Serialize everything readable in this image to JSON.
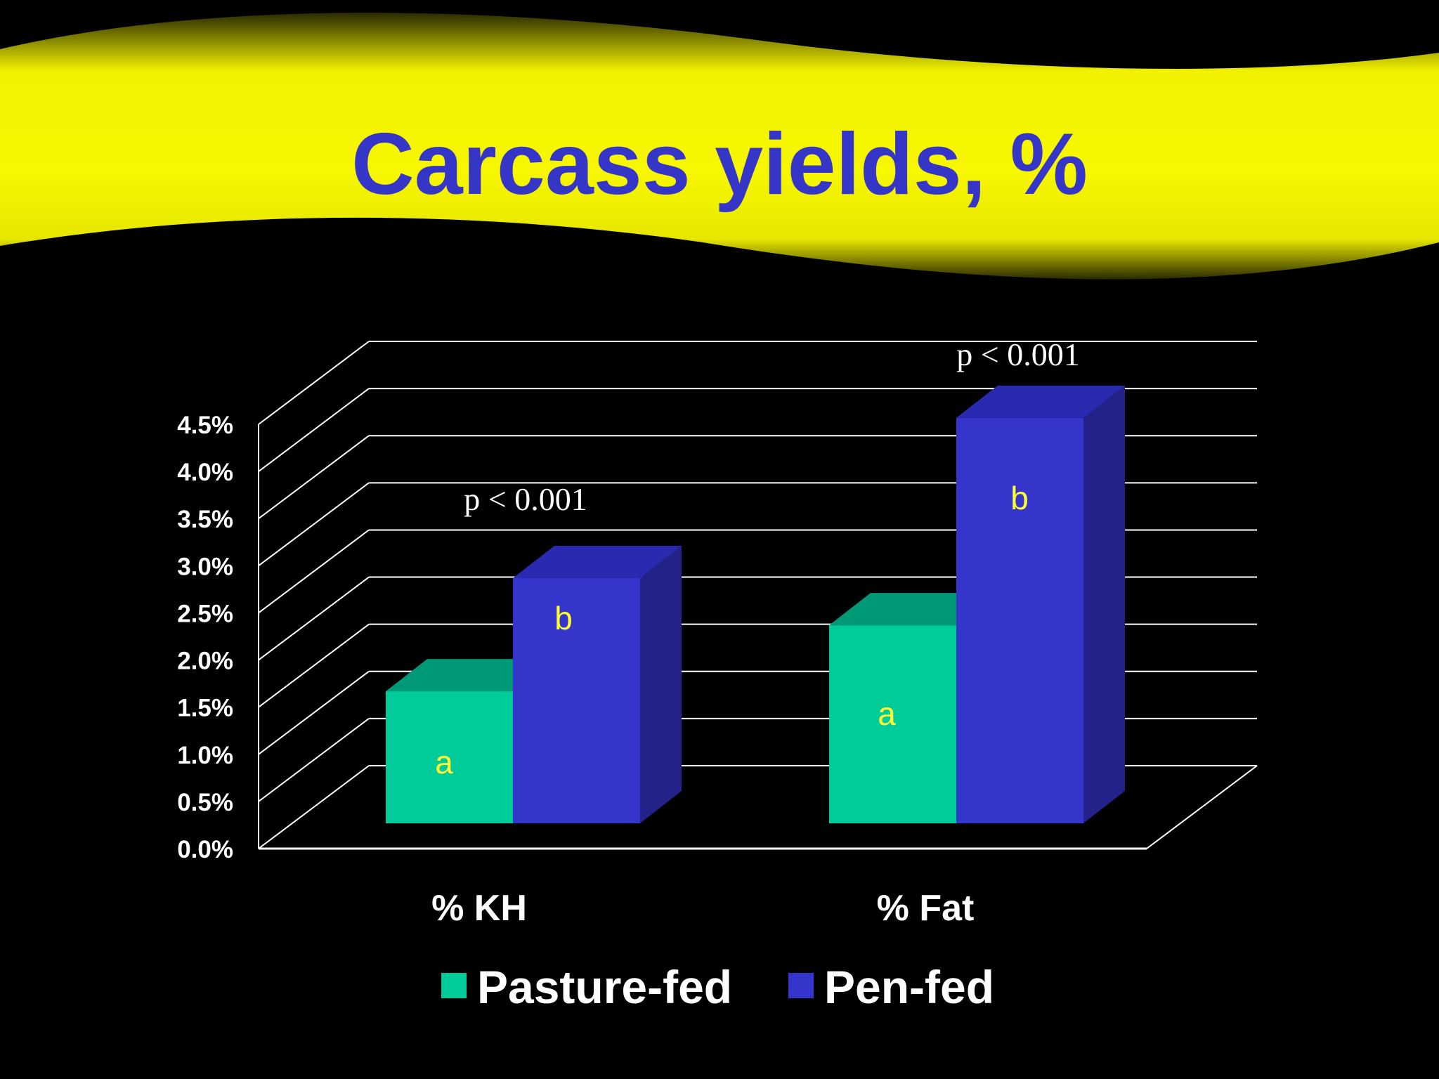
{
  "title": "Carcass yields, %",
  "colors": {
    "banner": "#f7f700",
    "title": "#3535c8",
    "pasture": "#00cc99",
    "pen": "#3535cc",
    "letters": "#ffff33",
    "grid": "#ffffff",
    "background": "#000000"
  },
  "chart_data": {
    "type": "bar",
    "categories": [
      "% KH",
      "% Fat"
    ],
    "series": [
      {
        "name": "Pasture-fed",
        "values": [
          1.4,
          2.1
        ],
        "letters": [
          "a",
          "a"
        ]
      },
      {
        "name": "Pen-fed",
        "values": [
          2.6,
          4.3
        ],
        "letters": [
          "b",
          "b"
        ]
      }
    ],
    "ylim": [
      0,
      4.5
    ],
    "y_ticks": [
      "0.0%",
      "0.5%",
      "1.0%",
      "1.5%",
      "2.0%",
      "2.5%",
      "3.0%",
      "3.5%",
      "4.0%",
      "4.5%"
    ],
    "annotations": [
      "p < 0.001",
      "p < 0.001"
    ],
    "grid": true,
    "three_d": true,
    "legend_position": "bottom"
  }
}
